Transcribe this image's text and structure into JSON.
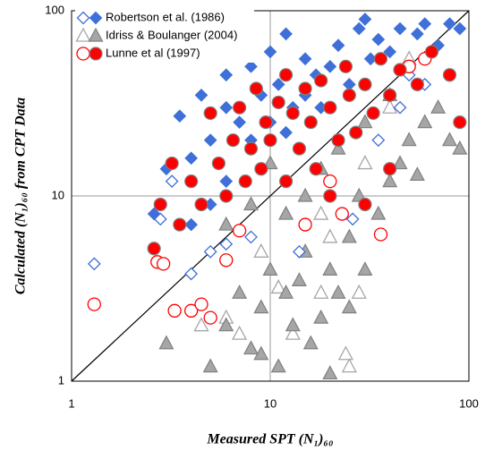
{
  "chart_data": {
    "type": "scatter",
    "xlabel": "Measured SPT (N₁)₆₀",
    "ylabel": "Calculated (N₁)₆₀ from CPT Data",
    "xlim": [
      1,
      100
    ],
    "ylim": [
      1,
      100
    ],
    "xticks": [
      1,
      10,
      100
    ],
    "yticks": [
      1,
      10,
      100
    ],
    "log_x": true,
    "log_y": true,
    "grid": true,
    "legend": "upper left",
    "series": [
      {
        "name": "Idriss & Boulanger (2004)",
        "marker": "triangle",
        "color": "#a6a6a6",
        "x": [
          3,
          5,
          6,
          7,
          8,
          9,
          10,
          11,
          12,
          13,
          15,
          16,
          18,
          20,
          22,
          25,
          28,
          30,
          35,
          40,
          45,
          50,
          55,
          60,
          70,
          80,
          90,
          12,
          15,
          18,
          20,
          25,
          9,
          14,
          8,
          6,
          10,
          30,
          40,
          22
        ],
        "y": [
          1.6,
          1.2,
          2,
          3,
          1.5,
          2.5,
          4,
          1.2,
          3,
          2,
          5,
          1.6,
          2.2,
          4,
          3,
          6,
          10,
          4,
          8,
          12,
          15,
          20,
          13,
          25,
          30,
          20,
          18,
          8,
          10,
          14,
          1.1,
          2.5,
          1.4,
          3.5,
          9,
          7,
          15,
          25,
          35,
          18
        ],
        "x_open": [
          4.5,
          6,
          7,
          9,
          11,
          13,
          18,
          20,
          24,
          25,
          28,
          18,
          30,
          40,
          50
        ],
        "y_open": [
          2,
          2.2,
          1.8,
          5,
          3.2,
          1.8,
          3,
          6,
          1.4,
          1.2,
          3,
          8,
          15,
          30,
          55
        ]
      },
      {
        "name": "Robertson et al. (1986)",
        "marker": "diamond",
        "color": "#3f6fd8",
        "x": [
          2.6,
          3,
          3.5,
          4,
          4.5,
          5,
          6,
          6,
          7,
          8,
          9,
          10,
          11,
          12,
          13,
          15,
          17,
          20,
          22,
          25,
          28,
          30,
          32,
          35,
          40,
          45,
          50,
          55,
          60,
          70,
          80,
          90,
          8,
          10,
          12,
          18,
          6,
          5,
          4,
          15
        ],
        "y": [
          8,
          14,
          27,
          16,
          35,
          20,
          30,
          45,
          25,
          50,
          35,
          60,
          40,
          75,
          30,
          55,
          45,
          50,
          65,
          40,
          80,
          90,
          55,
          70,
          60,
          80,
          50,
          75,
          85,
          65,
          85,
          80,
          20,
          25,
          22,
          30,
          12,
          9,
          7,
          35
        ],
        "x_open": [
          1.3,
          2.8,
          3.2,
          4,
          5,
          6,
          8,
          14,
          20,
          26,
          35,
          45,
          50,
          60,
          65
        ],
        "y_open": [
          4.3,
          7.5,
          12,
          3.8,
          5,
          5.5,
          6,
          5,
          12,
          7.5,
          20,
          30,
          45,
          40,
          60
        ]
      },
      {
        "name": "Lunne et al (1997)",
        "marker": "circle",
        "color": "#ff0000",
        "x": [
          2.6,
          2.8,
          3.2,
          3.5,
          4,
          4.5,
          5,
          5.5,
          6,
          6.5,
          7,
          7.5,
          8,
          8.5,
          9,
          9.5,
          10,
          11,
          12,
          12,
          13,
          14,
          15,
          16,
          17,
          18,
          20,
          22,
          24,
          25,
          27,
          30,
          33,
          36,
          40,
          45,
          55,
          65,
          80,
          90,
          30,
          20,
          40
        ],
        "y": [
          5.2,
          9,
          15,
          7,
          12,
          9,
          28,
          15,
          10,
          20,
          30,
          12,
          18,
          38,
          14,
          25,
          20,
          32,
          12,
          45,
          28,
          18,
          38,
          25,
          14,
          42,
          30,
          20,
          50,
          35,
          22,
          40,
          28,
          55,
          35,
          48,
          40,
          60,
          45,
          25,
          9,
          10,
          14
        ],
        "x_open": [
          1.3,
          2.7,
          2.9,
          3.3,
          4,
          4.5,
          5,
          6,
          7,
          15,
          20,
          23,
          36,
          50,
          60
        ],
        "y_open": [
          2.6,
          4.4,
          4.3,
          2.4,
          2.4,
          2.6,
          2.2,
          4.5,
          6.5,
          7,
          12,
          8,
          6.2,
          50,
          55
        ]
      }
    ]
  }
}
